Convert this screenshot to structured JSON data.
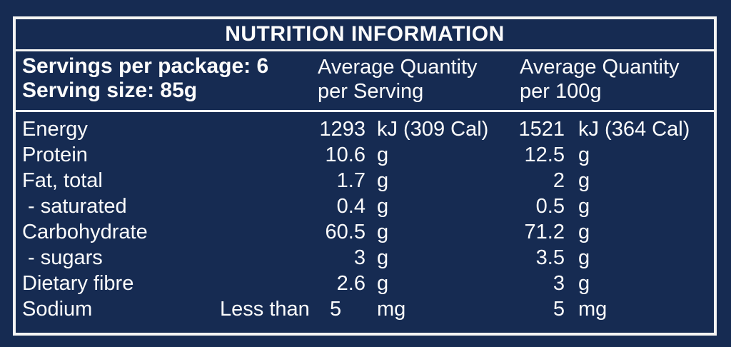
{
  "panel": {
    "title": "NUTRITION INFORMATION",
    "serving_info": {
      "servings_per_package": "Servings per package: 6",
      "serving_size": "Serving size: 85g"
    },
    "columns": {
      "per_serving": {
        "line1": "Average Quantity",
        "line2": "per Serving"
      },
      "per_100g": {
        "line1": "Average Quantity",
        "line2": "per 100g"
      }
    },
    "colors": {
      "background": "#162b52",
      "border": "#f6f6f4",
      "text": "#fcfcfc"
    },
    "rows": [
      {
        "label": "Energy",
        "indent": false,
        "qualifier": "",
        "per_serving": {
          "value": "1293",
          "unit": "kJ (309 Cal)"
        },
        "per_100g": {
          "value": "1521",
          "unit": "kJ (364 Cal)"
        }
      },
      {
        "label": "Protein",
        "indent": false,
        "qualifier": "",
        "per_serving": {
          "value": "10.6",
          "unit": "g"
        },
        "per_100g": {
          "value": "12.5",
          "unit": "g"
        }
      },
      {
        "label": "Fat, total",
        "indent": false,
        "qualifier": "",
        "per_serving": {
          "value": "1.7",
          "unit": "g"
        },
        "per_100g": {
          "value": "2",
          "unit": "g"
        }
      },
      {
        "label": "- saturated",
        "indent": true,
        "qualifier": "",
        "per_serving": {
          "value": "0.4",
          "unit": "g"
        },
        "per_100g": {
          "value": "0.5",
          "unit": "g"
        }
      },
      {
        "label": "Carbohydrate",
        "indent": false,
        "qualifier": "",
        "per_serving": {
          "value": "60.5",
          "unit": "g"
        },
        "per_100g": {
          "value": "71.2",
          "unit": "g"
        }
      },
      {
        "label": "- sugars",
        "indent": true,
        "qualifier": "",
        "per_serving": {
          "value": "3",
          "unit": "g"
        },
        "per_100g": {
          "value": "3.5",
          "unit": "g"
        }
      },
      {
        "label": "Dietary fibre",
        "indent": false,
        "qualifier": "",
        "per_serving": {
          "value": "2.6",
          "unit": "g"
        },
        "per_100g": {
          "value": "3",
          "unit": "g"
        }
      },
      {
        "label": "Sodium",
        "indent": false,
        "qualifier": "Less than",
        "per_serving": {
          "value": "5",
          "unit": "mg"
        },
        "per_100g": {
          "value": "5",
          "unit": "mg"
        }
      }
    ]
  }
}
